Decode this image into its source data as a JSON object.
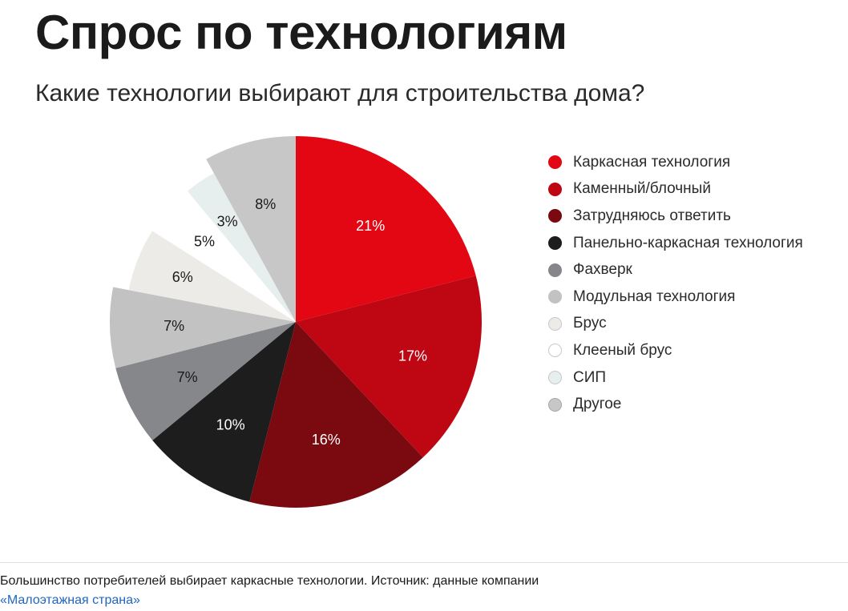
{
  "chart_data": {
    "type": "pie",
    "title": "Спрос по технологиям",
    "subtitle": "Какие технологии выбирают для строительства дома?",
    "legend_position": "right",
    "slices": [
      {
        "label": "Каркасная технология",
        "value": 21,
        "display": "21%",
        "color": "#e30613",
        "text_color": "#ffffff",
        "dot_border": "#e30613"
      },
      {
        "label": "Каменный/блочный",
        "value": 17,
        "display": "17%",
        "color": "#bf0713",
        "text_color": "#ffffff",
        "dot_border": "#bf0713"
      },
      {
        "label": "Затрудняюсь ответить",
        "value": 16,
        "display": "16%",
        "color": "#7a0910",
        "text_color": "#ffffff",
        "dot_border": "#7a0910"
      },
      {
        "label": "Панельно-каркасная технология",
        "value": 10,
        "display": "10%",
        "color": "#1d1d1d",
        "text_color": "#ffffff",
        "dot_border": "#1d1d1d"
      },
      {
        "label": "Фахверк",
        "value": 7,
        "display": "7%",
        "color": "#86878a",
        "text_color": "#1a1a1a",
        "dot_border": "#86878a"
      },
      {
        "label": "Модульная технология",
        "value": 7,
        "display": "7%",
        "color": "#c2c2c3",
        "text_color": "#1a1a1a",
        "dot_border": "#c2c2c3"
      },
      {
        "label": "Брус",
        "value": 6,
        "display": "6%",
        "color": "#ecebe8",
        "text_color": "#1a1a1a",
        "dot_border": "#c8c8c8"
      },
      {
        "label": "Клееный брус",
        "value": 5,
        "display": "5%",
        "color": "#ffffff",
        "text_color": "#1a1a1a",
        "dot_border": "#c8c8c8"
      },
      {
        "label": "СИП",
        "value": 3,
        "display": "3%",
        "color": "#e7eeee",
        "text_color": "#1a1a1a",
        "dot_border": "#c8c8c8"
      },
      {
        "label": "Другое",
        "value": 8,
        "display": "8%",
        "color": "#c7c7c7",
        "text_color": "#1a1a1a",
        "dot_border": "#a8a8a8"
      }
    ]
  },
  "caption": {
    "text": "Большинство потребителей выбирает каркасные технологии. Источник: данные компании",
    "link_text": "«Малоэтажная страна»"
  }
}
